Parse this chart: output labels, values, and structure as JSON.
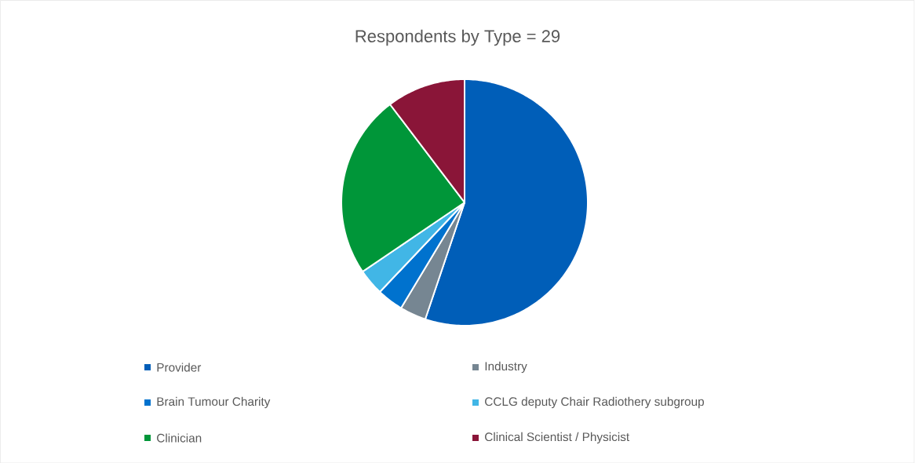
{
  "chart_data": {
    "type": "pie",
    "title": "Respondents by Type = 29",
    "categories": [
      "Provider",
      "Industry",
      "Brain Tumour Charity",
      "CCLG deputy Chair Radiothery subgroup",
      "Clinician",
      "Clinical Scientist / Physicist"
    ],
    "values": [
      55.17,
      3.45,
      3.45,
      3.45,
      24.14,
      10.34
    ],
    "colors": [
      "#005eb8",
      "#768692",
      "#0072ce",
      "#41b6e6",
      "#009639",
      "#8a1538"
    ],
    "legend": "bottom"
  }
}
